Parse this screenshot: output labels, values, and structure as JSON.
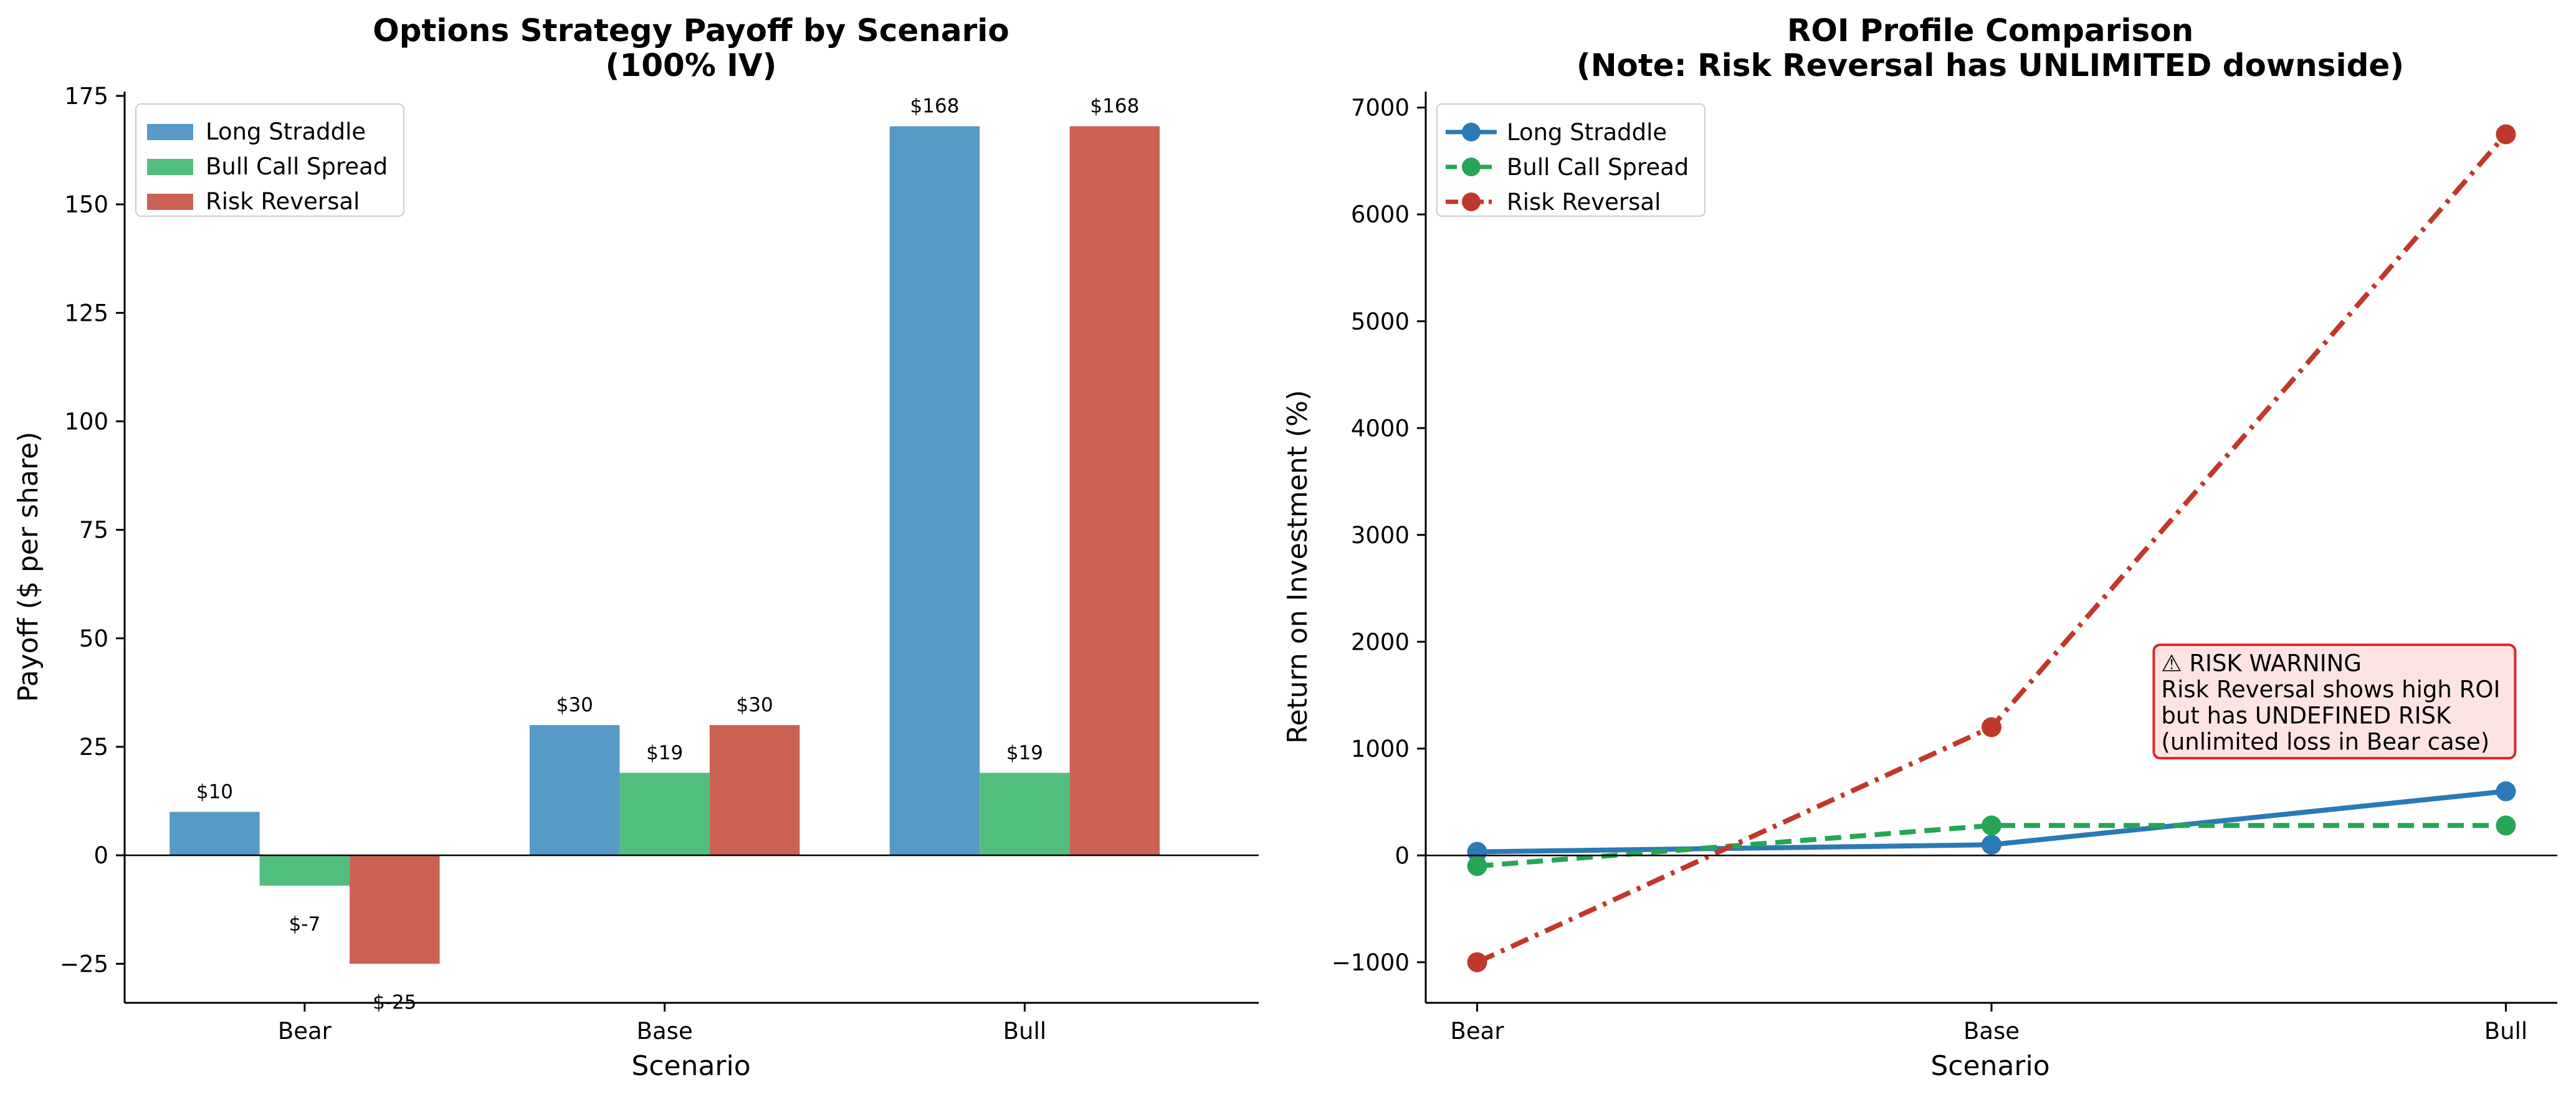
{
  "chart_data": [
    {
      "type": "bar",
      "title": "Options Strategy Payoff by Scenario",
      "subtitle": "(100% IV)",
      "xlabel": "Scenario",
      "ylabel": "Payoff ($ per share)",
      "categories": [
        "Bear",
        "Base",
        "Bull"
      ],
      "series": [
        {
          "name": "Long Straddle",
          "color": "#5799c7",
          "values": [
            10,
            30,
            168
          ],
          "labels": [
            "$10",
            "$30",
            "$168"
          ]
        },
        {
          "name": "Bull Call Spread",
          "color": "#52be7d",
          "values": [
            -7,
            19,
            19
          ],
          "labels": [
            "$-7",
            "$19",
            "$19"
          ]
        },
        {
          "name": "Risk Reversal",
          "color": "#cb6153",
          "values": [
            -25,
            30,
            168
          ],
          "labels": [
            "$-25",
            "$30",
            "$168"
          ]
        }
      ],
      "ylim": [
        -34,
        176
      ],
      "yticks": [
        -25,
        0,
        25,
        50,
        75,
        100,
        125,
        150,
        175
      ],
      "ytick_labels": [
        "−25",
        "0",
        "25",
        "50",
        "75",
        "100",
        "125",
        "150",
        "175"
      ],
      "legend": "top-left",
      "grid": false
    },
    {
      "type": "line",
      "title": "ROI Profile Comparison",
      "subtitle": "(Note: Risk Reversal has UNLIMITED downside)",
      "xlabel": "Scenario",
      "ylabel": "Return on Investment (%)",
      "categories": [
        "Bear",
        "Base",
        "Bull"
      ],
      "series": [
        {
          "name": "Long Straddle",
          "color": "#2a7ab5",
          "dash": "solid",
          "values": [
            33,
            100,
            600
          ]
        },
        {
          "name": "Bull Call Spread",
          "color": "#27a556",
          "dash": "dashed",
          "values": [
            -100,
            280,
            280
          ]
        },
        {
          "name": "Risk Reversal",
          "color": "#c0382b",
          "dash": "dashdot",
          "values": [
            -1000,
            1200,
            6750
          ]
        }
      ],
      "ylim": [
        -1380,
        7150
      ],
      "yticks": [
        -1000,
        0,
        1000,
        2000,
        3000,
        4000,
        5000,
        6000,
        7000
      ],
      "ytick_labels": [
        "−1000",
        "0",
        "1000",
        "2000",
        "3000",
        "4000",
        "5000",
        "6000",
        "7000"
      ],
      "legend": "top-left",
      "grid": false,
      "annotation": {
        "lines": [
          "⚠ RISK WARNING",
          "Risk Reversal shows high ROI",
          "but has UNDEFINED RISK",
          "(unlimited loss in Bear case)"
        ],
        "anchor_category": 1.33,
        "anchor_value": 700,
        "bg": "#fde2e1",
        "border": "#d8282a"
      }
    }
  ]
}
